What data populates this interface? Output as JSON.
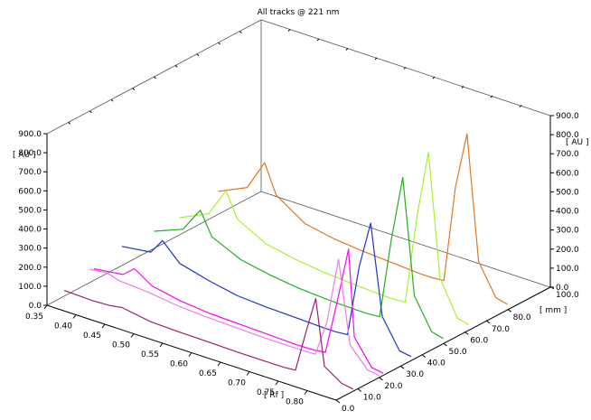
{
  "chart_data": {
    "type": "line",
    "title": "All tracks @ 221 nm",
    "xlabel": "[ Rf ]",
    "ylabel": "[ AU ]",
    "zlabel": "[ mm ]",
    "xlim": [
      0.35,
      0.85
    ],
    "ylim": [
      0,
      900
    ],
    "zlim": [
      0,
      100
    ],
    "x_ticks": [
      "0.35",
      "0.40",
      "0.45",
      "0.50",
      "0.55",
      "0.60",
      "0.65",
      "0.70",
      "0.75",
      "0.80"
    ],
    "y_ticks": [
      "0.0",
      "100.0",
      "200.0",
      "300.0",
      "400.0",
      "500.0",
      "600.0",
      "700.0",
      "800.0",
      "900.0"
    ],
    "z_ticks": [
      "0.0",
      "10.0",
      "20.0",
      "30.0",
      "40.0",
      "50.0",
      "60.0",
      "70.0",
      "80.0",
      "100.0"
    ],
    "series": [
      {
        "color": "#9b1f6e",
        "track": 8,
        "x": [
          0.35,
          0.4,
          0.43,
          0.45,
          0.5,
          0.55,
          0.6,
          0.65,
          0.7,
          0.73,
          0.75,
          0.77,
          0.785,
          0.8,
          0.83,
          0.85
        ],
        "y": [
          30,
          25,
          30,
          40,
          15,
          10,
          8,
          5,
          5,
          5,
          10,
          250,
          420,
          80,
          20,
          10
        ]
      },
      {
        "color": "#e87ee0",
        "track": 20,
        "x": [
          0.35,
          0.38,
          0.4,
          0.45,
          0.5,
          0.55,
          0.6,
          0.65,
          0.7,
          0.72,
          0.74,
          0.76,
          0.78,
          0.8,
          0.83,
          0.85
        ],
        "y": [
          70,
          80,
          60,
          50,
          30,
          20,
          15,
          10,
          10,
          10,
          12,
          200,
          550,
          120,
          20,
          10
        ]
      },
      {
        "color": "#ff00ff",
        "track": 22,
        "x": [
          0.35,
          0.4,
          0.42,
          0.45,
          0.5,
          0.55,
          0.6,
          0.65,
          0.7,
          0.73,
          0.75,
          0.77,
          0.79,
          0.8,
          0.83,
          0.85
        ],
        "y": [
          60,
          80,
          130,
          70,
          40,
          25,
          20,
          15,
          10,
          12,
          20,
          300,
          600,
          150,
          20,
          10
        ]
      },
      {
        "color": "#1f35c0",
        "track": 35,
        "x": [
          0.35,
          0.4,
          0.42,
          0.45,
          0.5,
          0.55,
          0.6,
          0.65,
          0.7,
          0.72,
          0.74,
          0.76,
          0.78,
          0.8,
          0.83,
          0.85
        ],
        "y": [
          100,
          120,
          200,
          110,
          70,
          40,
          30,
          25,
          20,
          20,
          25,
          400,
          650,
          180,
          30,
          20
        ]
      },
      {
        "color": "#22b022",
        "track": 50,
        "x": [
          0.35,
          0.4,
          0.43,
          0.45,
          0.5,
          0.55,
          0.6,
          0.65,
          0.7,
          0.72,
          0.74,
          0.76,
          0.78,
          0.8,
          0.83,
          0.85
        ],
        "y": [
          90,
          150,
          280,
          160,
          90,
          60,
          40,
          30,
          25,
          25,
          30,
          450,
          800,
          200,
          40,
          25
        ]
      },
      {
        "color": "#a8f030",
        "track": 62,
        "x": [
          0.35,
          0.4,
          0.43,
          0.45,
          0.5,
          0.55,
          0.6,
          0.65,
          0.7,
          0.72,
          0.74,
          0.76,
          0.78,
          0.8,
          0.83,
          0.85
        ],
        "y": [
          90,
          160,
          310,
          180,
          100,
          70,
          50,
          40,
          30,
          30,
          35,
          500,
          860,
          220,
          40,
          25
        ]
      },
      {
        "color": "#e07820",
        "track": 80,
        "x": [
          0.35,
          0.4,
          0.43,
          0.45,
          0.5,
          0.55,
          0.6,
          0.65,
          0.7,
          0.72,
          0.74,
          0.76,
          0.78,
          0.8,
          0.83,
          0.85
        ],
        "y": [
          120,
          190,
          350,
          200,
          100,
          70,
          55,
          45,
          35,
          35,
          40,
          550,
          850,
          200,
          40,
          25
        ]
      }
    ],
    "grid": false,
    "legend": "none"
  }
}
